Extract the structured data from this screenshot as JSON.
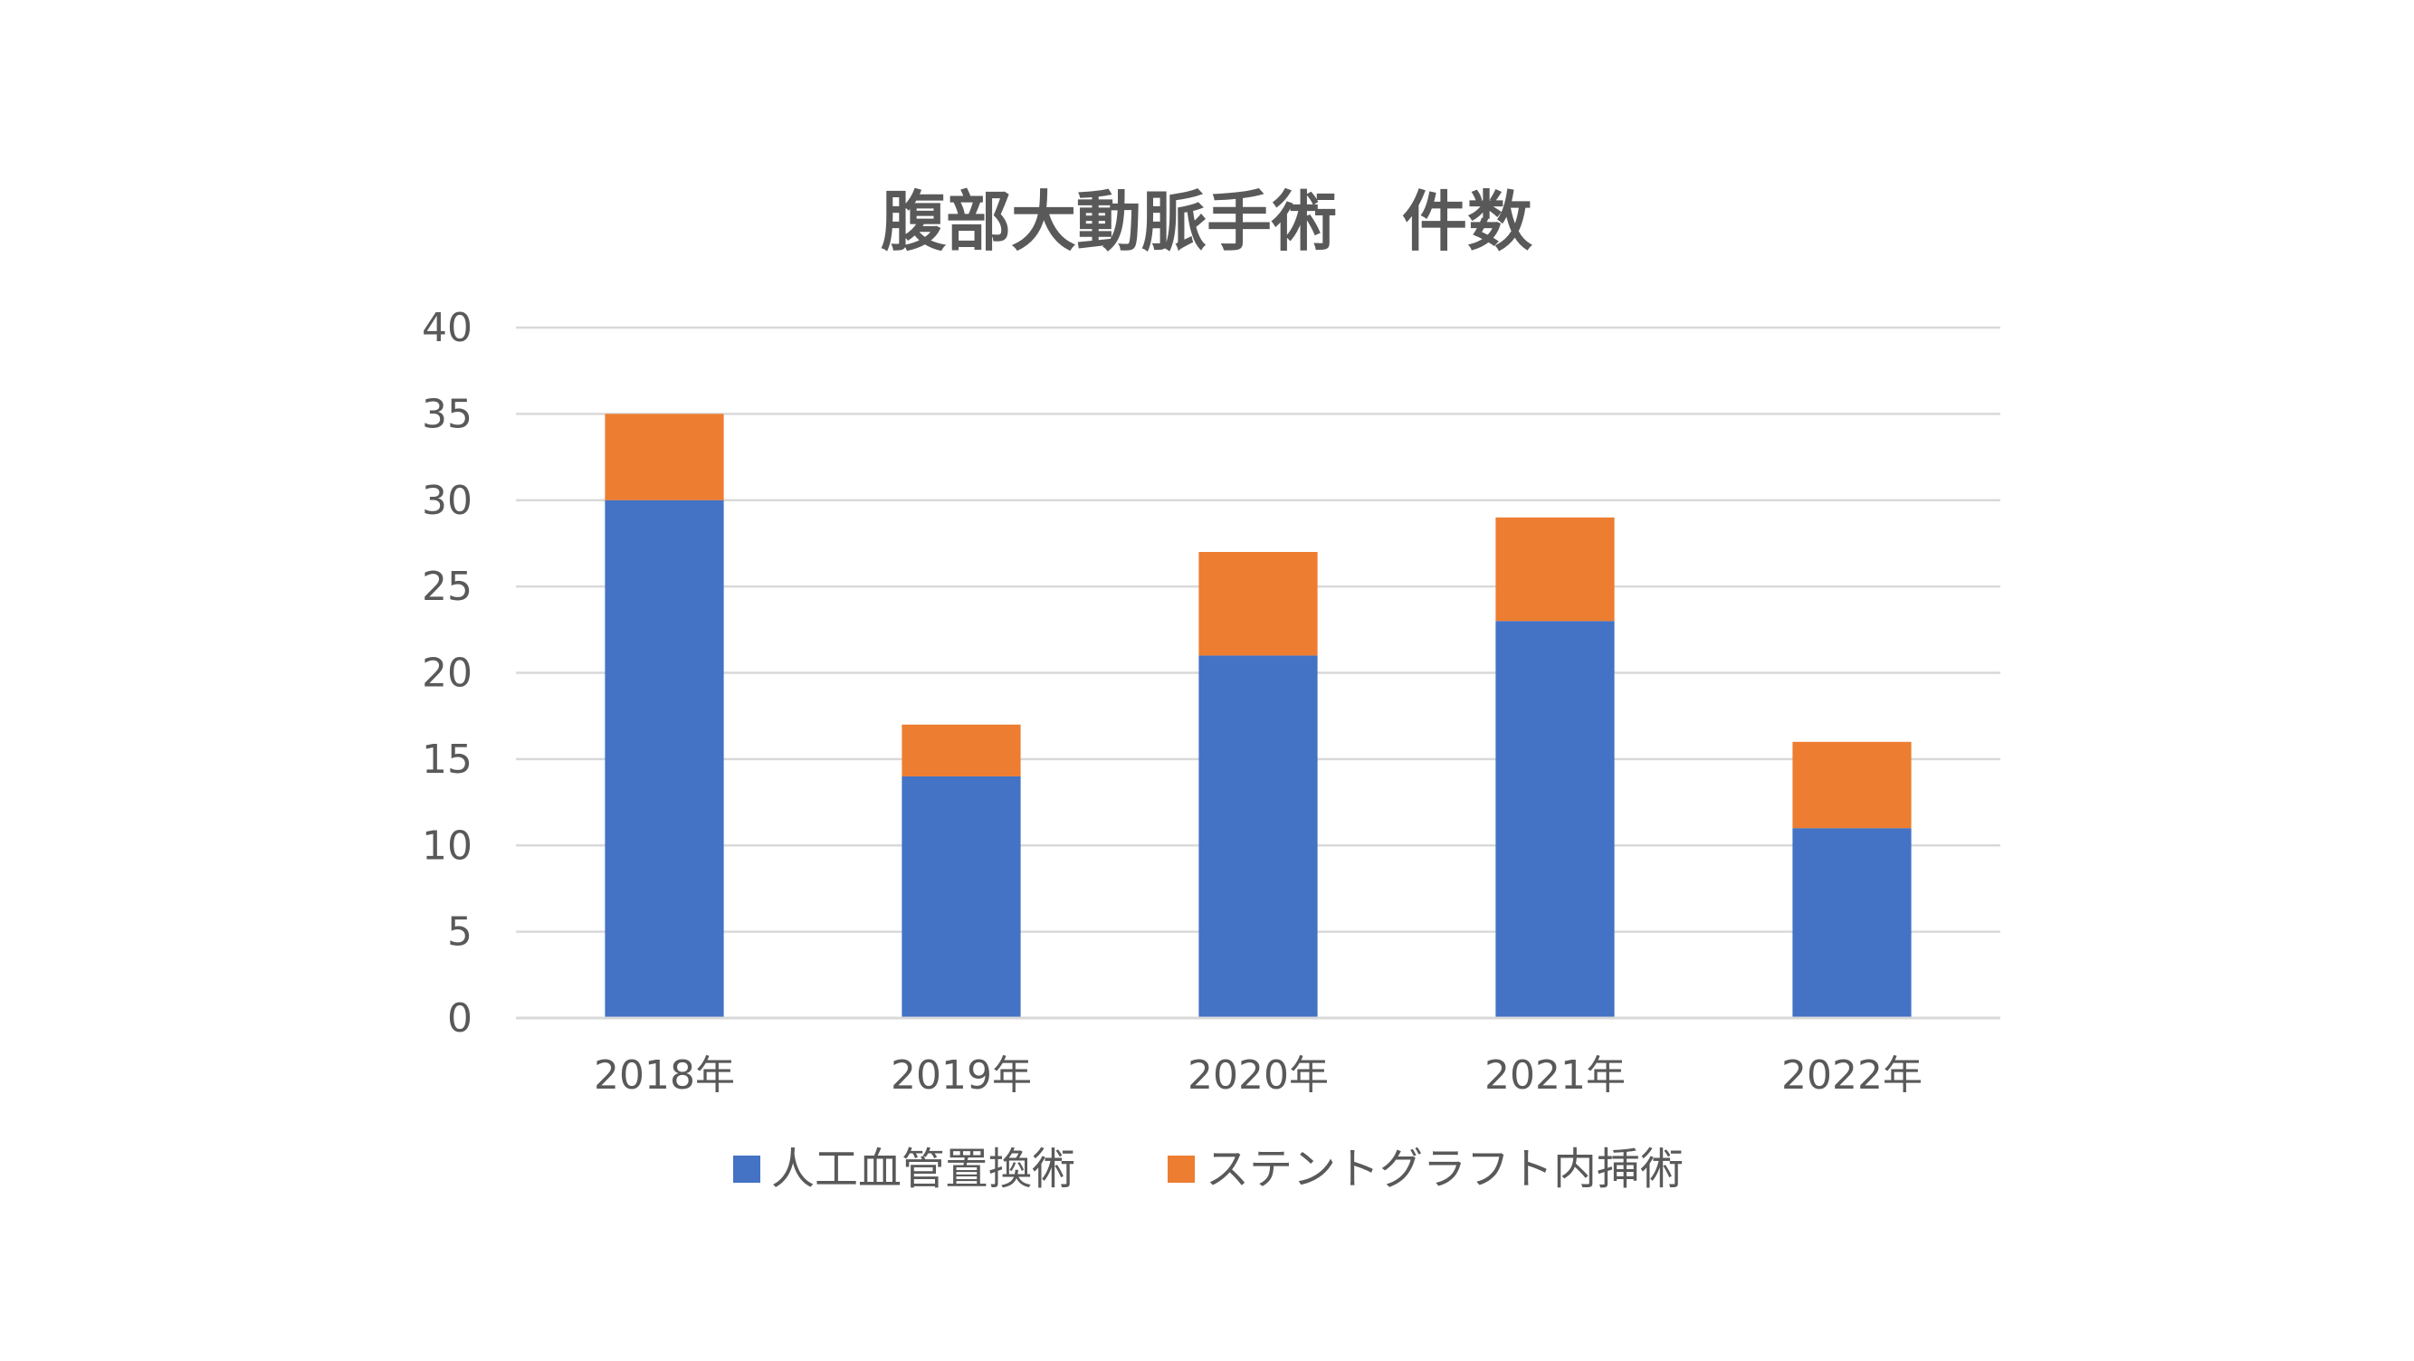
{
  "chart_data": {
    "type": "bar",
    "stacked": true,
    "title": "腹部大動脈手術　件数",
    "xlabel": "",
    "ylabel": "",
    "categories": [
      "2018年",
      "2019年",
      "2020年",
      "2021年",
      "2022年"
    ],
    "series": [
      {
        "name": "人工血管置換術",
        "values": [
          30,
          14,
          21,
          23,
          11
        ],
        "color": "#4472c4"
      },
      {
        "name": "ステントグラフト内挿術",
        "values": [
          5,
          3,
          6,
          6,
          5
        ],
        "color": "#ed7d31"
      }
    ],
    "ylim": [
      0,
      40
    ],
    "yticks": [
      "0",
      "5",
      "10",
      "15",
      "20",
      "25",
      "30",
      "35",
      "40"
    ],
    "grid": true,
    "legend_position": "bottom"
  }
}
